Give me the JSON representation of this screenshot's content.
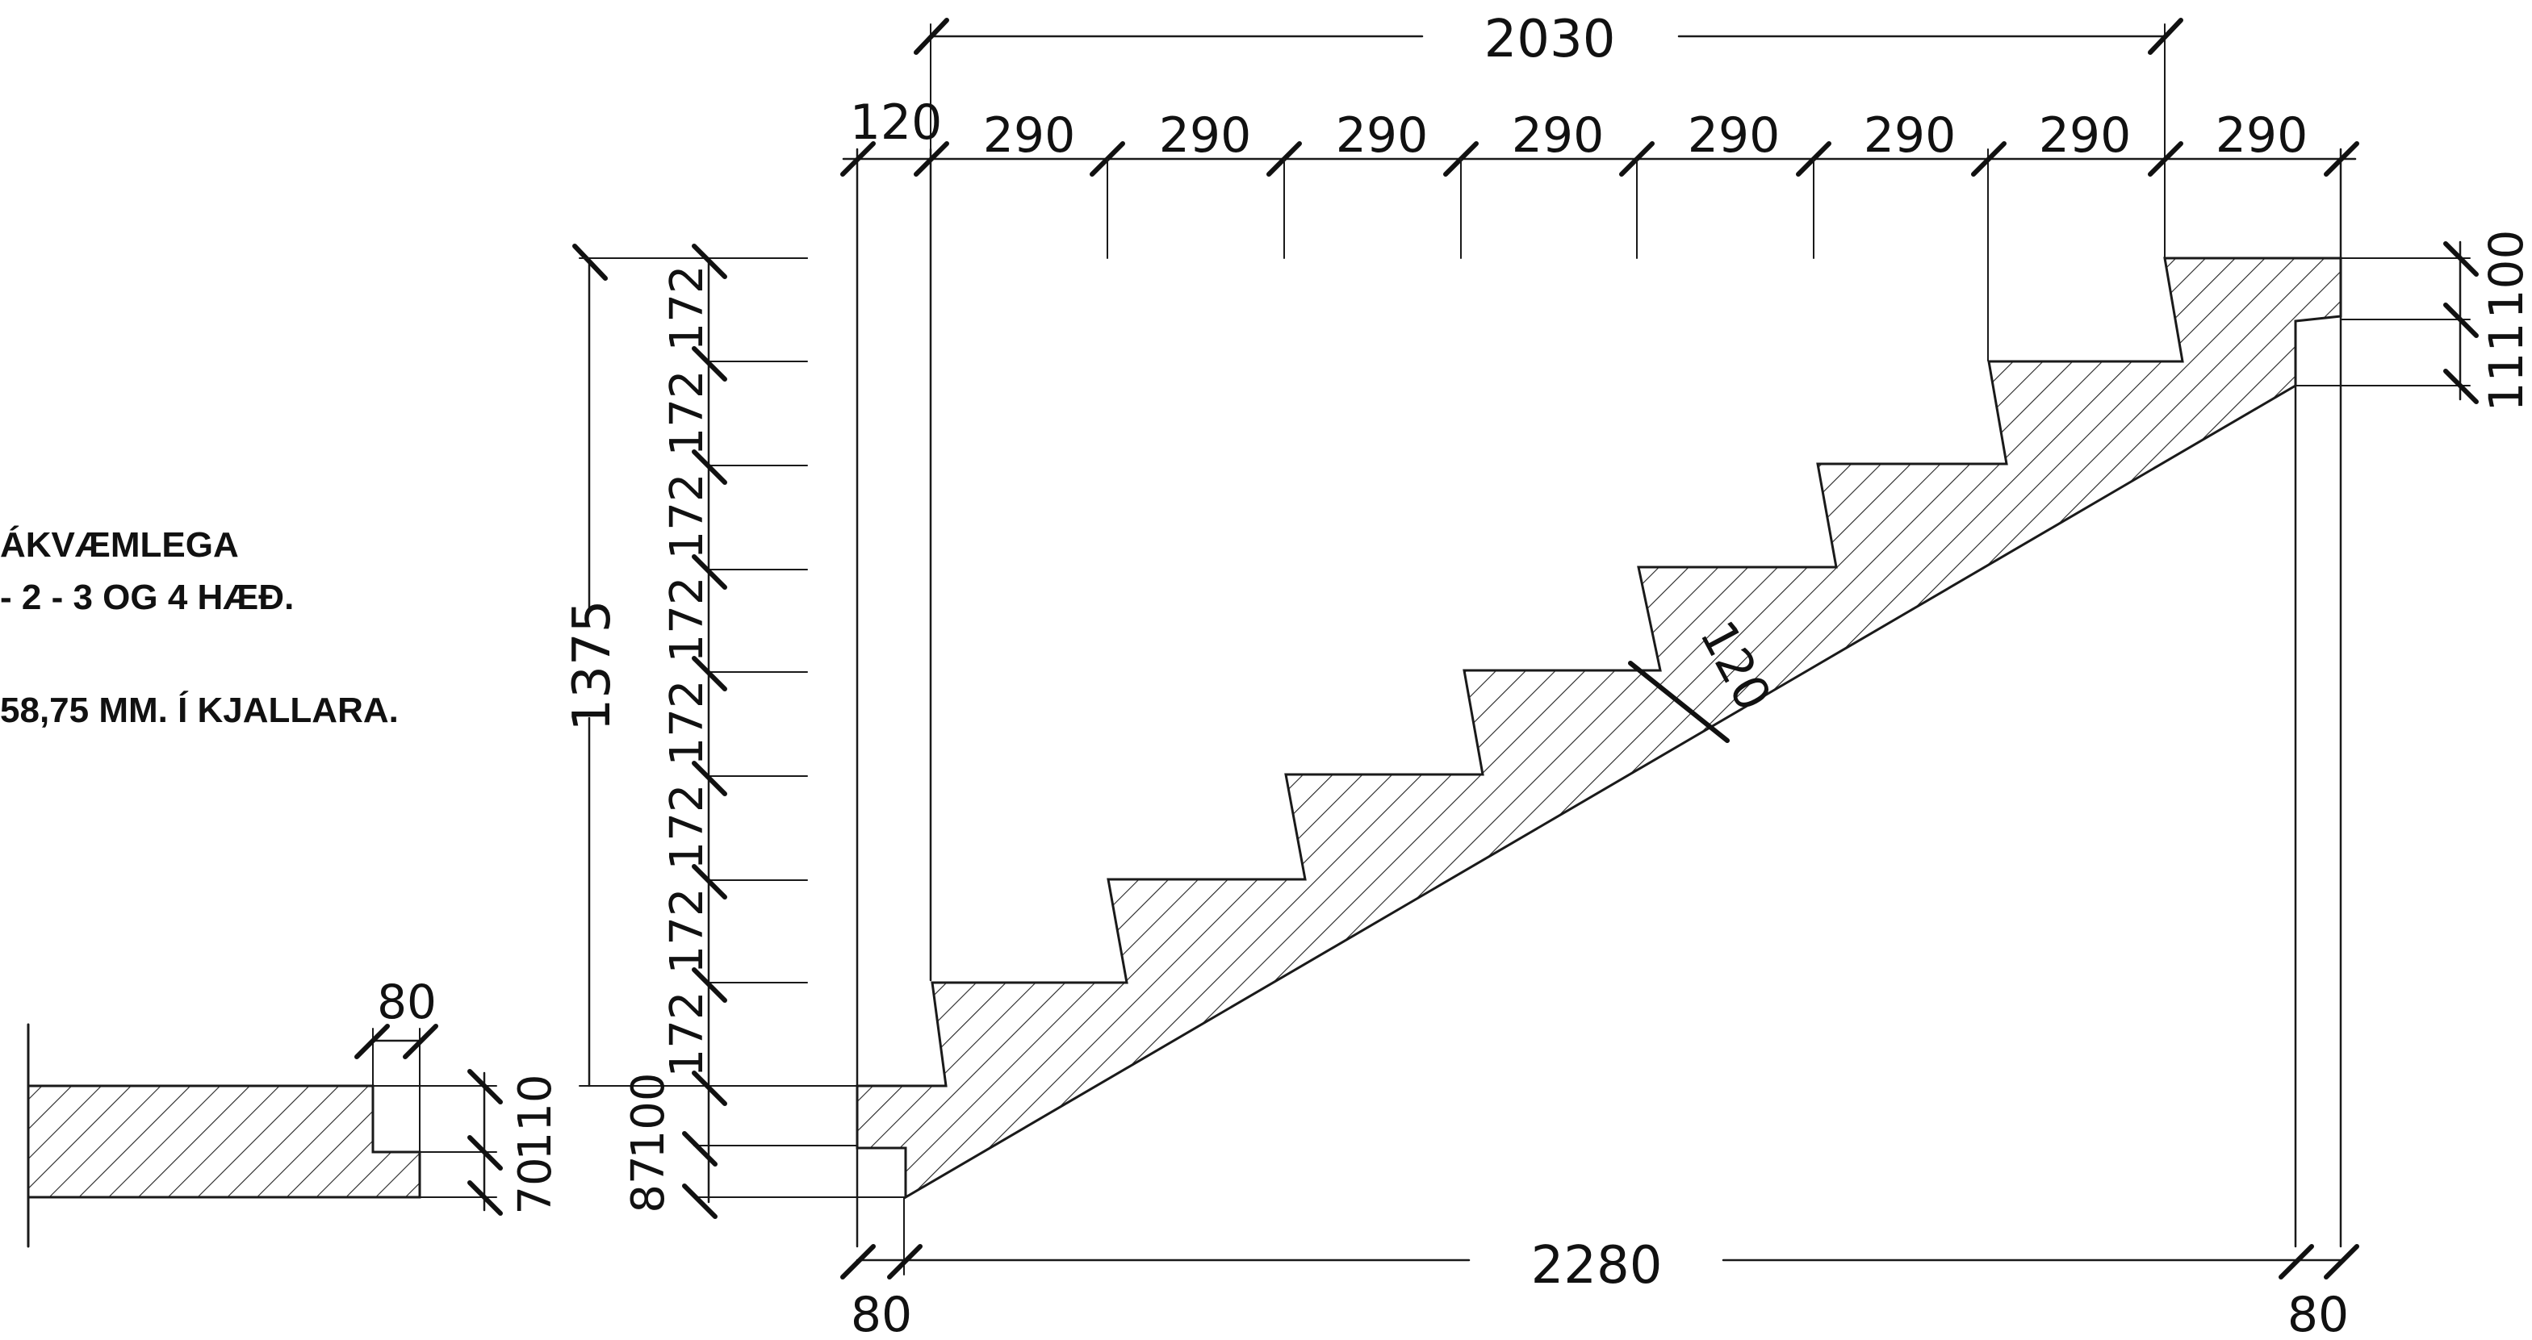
{
  "notes": [
    "ÁKVÆMLEGA",
    "- 2 - 3 OG 4 HÆÐ.",
    "58,75 MM. Í KJALLARA."
  ],
  "dims": {
    "overall_top": "2030",
    "left_offset_top": "120",
    "treads": [
      "290",
      "290",
      "290",
      "290",
      "290",
      "290",
      "290",
      "290"
    ],
    "total_rise": "1375",
    "risers": [
      "172",
      "172",
      "172",
      "172",
      "172",
      "172",
      "172",
      "172"
    ],
    "slab_thickness": "120",
    "right_landing_top": "100",
    "right_landing_bottom": "111",
    "left_landing_a": "100",
    "left_landing_b": "87",
    "wall_left": "80",
    "overall_bottom": "2280",
    "wall_right": "80",
    "floor_wall": "80",
    "floor_a": "110",
    "floor_b": "70"
  },
  "colors": {
    "line": "#1a1a1a",
    "hatch": "#222222"
  }
}
